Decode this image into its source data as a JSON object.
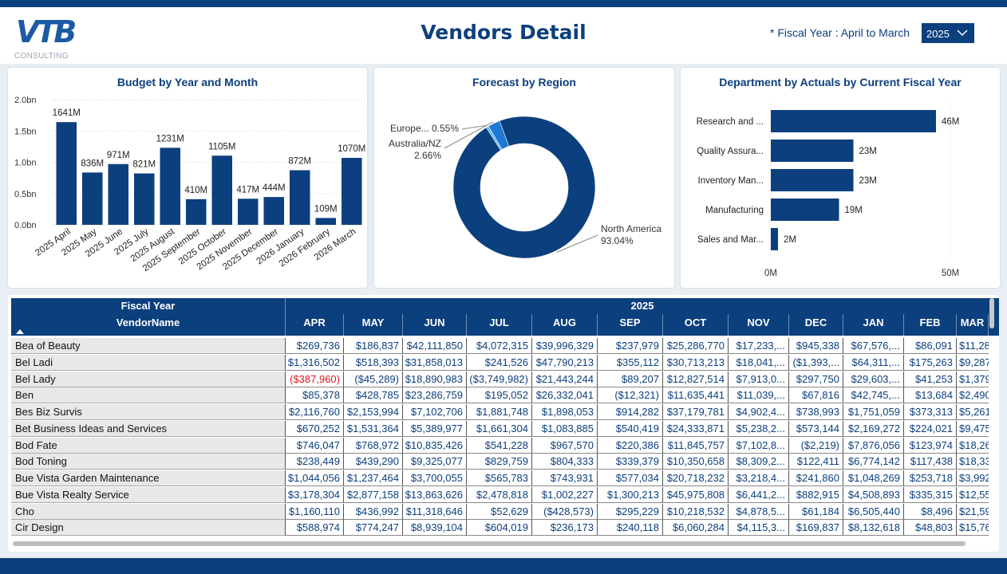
{
  "header": {
    "logo_text": "VTB",
    "logo_sub": "CONSULTING",
    "title": "Vendors Detail",
    "fiscal_note": "* Fiscal Year : April to March",
    "year_value": "2025",
    "chevron_icon": "chevron-down-icon"
  },
  "cards": {
    "budget_title": "Budget by Year and Month",
    "forecast_title": "Forecast by Region",
    "dept_title": "Department by Actuals by Current Fiscal Year"
  },
  "chart_data": [
    {
      "type": "bar",
      "title": "Budget by Year and Month",
      "categories": [
        "2025 April",
        "2025 May",
        "2025 June",
        "2025 July",
        "2025 August",
        "2025 September",
        "2025 October",
        "2025 November",
        "2025 December",
        "2026 January",
        "2026 February",
        "2026 March"
      ],
      "values": [
        1641,
        836,
        971,
        821,
        1231,
        410,
        1105,
        417,
        444,
        872,
        109,
        1070
      ],
      "data_labels": [
        "1641M",
        "836M",
        "971M",
        "821M",
        "1231M",
        "410M",
        "1105M",
        "417M",
        "444M",
        "872M",
        "109M",
        "1070M"
      ],
      "yticks": [
        "0.0bn",
        "0.5bn",
        "1.0bn",
        "1.5bn",
        "2.0bn"
      ],
      "ylim": [
        0,
        2000
      ],
      "color": "#0c3f7d",
      "grid": true
    },
    {
      "type": "pie",
      "title": "Forecast by Region",
      "labels": [
        "North America",
        "Australia/NZ",
        "Europe..."
      ],
      "values": [
        93.04,
        2.66,
        0.55
      ],
      "data_labels": [
        "93.04%",
        "2.66%",
        "0.55%"
      ],
      "colors": [
        "#0c3f7d",
        "#1f78d1",
        "#5fb7f0"
      ],
      "donut": true
    },
    {
      "type": "bar",
      "orientation": "horizontal",
      "title": "Department by Actuals by Current Fiscal Year",
      "categories": [
        "Research and ...",
        "Quality Assura...",
        "Inventory Man...",
        "Manufacturing",
        "Sales and Mar..."
      ],
      "values": [
        46,
        23,
        23,
        19,
        2
      ],
      "data_labels": [
        "46M",
        "23M",
        "23M",
        "19M",
        "2M"
      ],
      "xticks": [
        "0M",
        "50M"
      ],
      "xlim": [
        0,
        50
      ],
      "color": "#0c3f7d",
      "grid": true
    }
  ],
  "table": {
    "fiscal_year_label": "Fiscal Year",
    "year_label": "2025",
    "vendor_header": "VendorName",
    "sort_icon": "sort-up-icon",
    "months": [
      "APR",
      "MAY",
      "JUN",
      "JUL",
      "AUG",
      "SEP",
      "OCT",
      "NOV",
      "DEC",
      "JAN",
      "FEB",
      "MAR"
    ],
    "rows": [
      {
        "name": "Bea of Beauty",
        "values": [
          "$269,736",
          "$186,837",
          "$42,111,850",
          "$4,072,315",
          "$39,996,329",
          "$237,979",
          "$25,286,770",
          "$17,233,...",
          "$945,338",
          "$67,576,...",
          "$86,091",
          "$11,28"
        ]
      },
      {
        "name": "Bel Ladi",
        "values": [
          "$1,316,502",
          "$518,393",
          "$31,858,013",
          "$241,526",
          "$47,790,213",
          "$355,112",
          "$30,713,213",
          "$18,041,...",
          "($1,393,...",
          "$64,311,...",
          "$175,263",
          "$9,287"
        ]
      },
      {
        "name": "Bel Lady",
        "values": [
          "($387,960)",
          "($45,289)",
          "$18,890,983",
          "($3,749,982)",
          "$21,443,244",
          "$89,207",
          "$12,827,514",
          "$7,913,0...",
          "$297,750",
          "$29,603,...",
          "$41,253",
          "$1,379"
        ]
      },
      {
        "name": "Ben",
        "values": [
          "$85,378",
          "$428,785",
          "$23,286,759",
          "$195,052",
          "$26,332,041",
          "($12,321)",
          "$11,635,441",
          "$11,039,...",
          "$67,816",
          "$42,745,...",
          "$13,684",
          "$2,490"
        ]
      },
      {
        "name": "Bes Biz Survis",
        "values": [
          "$2,116,760",
          "$2,153,994",
          "$7,102,706",
          "$1,881,748",
          "$1,898,053",
          "$914,282",
          "$37,179,781",
          "$4,902,4...",
          "$738,993",
          "$1,751,059",
          "$373,313",
          "$5,261"
        ]
      },
      {
        "name": "Bet Business Ideas and Services",
        "values": [
          "$670,252",
          "$1,531,364",
          "$5,389,977",
          "$1,661,304",
          "$1,083,885",
          "$540,419",
          "$24,333,871",
          "$5,238,2...",
          "$573,144",
          "$2,169,272",
          "$224,021",
          "$9,475"
        ]
      },
      {
        "name": "Bod Fate",
        "values": [
          "$746,047",
          "$768,972",
          "$10,835,426",
          "$541,228",
          "$967,570",
          "$220,386",
          "$11,845,757",
          "$7,102,8...",
          "($2,219)",
          "$7,876,056",
          "$123,974",
          "$18,26"
        ]
      },
      {
        "name": "Bod Toning",
        "values": [
          "$238,449",
          "$439,290",
          "$9,325,077",
          "$829,759",
          "$804,333",
          "$339,379",
          "$10,350,658",
          "$8,309,2...",
          "$122,411",
          "$6,774,142",
          "$117,438",
          "$18,33"
        ]
      },
      {
        "name": "Bue Vista Garden Maintenance",
        "values": [
          "$1,044,056",
          "$1,237,464",
          "$3,700,055",
          "$565,783",
          "$743,931",
          "$577,034",
          "$20,718,232",
          "$3,218,4...",
          "$241,860",
          "$1,048,269",
          "$253,718",
          "$3,992"
        ]
      },
      {
        "name": "Bue Vista Realty Service",
        "values": [
          "$3,178,304",
          "$2,877,158",
          "$13,863,626",
          "$2,478,818",
          "$1,002,227",
          "$1,300,213",
          "$45,975,808",
          "$6,441,2...",
          "$882,915",
          "$4,508,893",
          "$335,315",
          "$12,55"
        ]
      },
      {
        "name": "Cho",
        "values": [
          "$1,160,110",
          "$436,992",
          "$11,318,646",
          "$52,629",
          "($428,573)",
          "$295,229",
          "$10,218,532",
          "$4,878,5...",
          "$61,184",
          "$6,505,440",
          "$8,496",
          "$21,59"
        ]
      },
      {
        "name": "Cir Design",
        "values": [
          "$588,974",
          "$774,247",
          "$8,939,104",
          "$604,019",
          "$236,173",
          "$240,118",
          "$6,060,284",
          "$4,115,3...",
          "$169,837",
          "$8,132,618",
          "$48,803",
          "$15,76"
        ]
      }
    ]
  }
}
